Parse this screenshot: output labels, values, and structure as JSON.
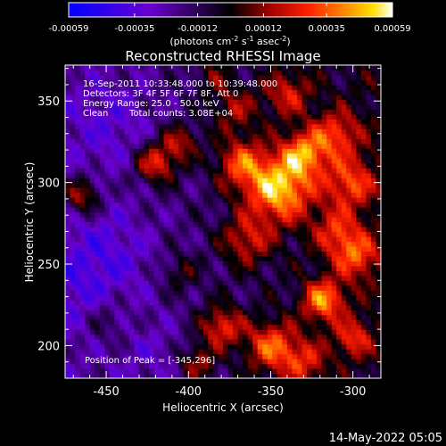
{
  "chart_data": {
    "type": "heatmap",
    "title": "Reconstructed RHESSI Image",
    "xlabel": "Heliocentric X (arcsec)",
    "ylabel": "Heliocentric Y (arcsec)",
    "xlim": [
      -475,
      -283
    ],
    "ylim": [
      180,
      372
    ],
    "x_ticks": [
      -450,
      -400,
      -350,
      -300
    ],
    "y_ticks": [
      200,
      250,
      300,
      350
    ],
    "colorbar": {
      "ticks": [
        "-0.00059",
        "-0.00035",
        "-0.00012",
        "0.00012",
        "0.00035",
        "0.00059"
      ],
      "tick_values": [
        -0.00059,
        -0.00035,
        -0.00012,
        0.00012,
        0.00035,
        0.00059
      ],
      "range": [
        -0.00059,
        0.00059
      ],
      "unit_prefix": "(photons cm",
      "unit_exp1": "-2",
      "unit_mid": " s",
      "unit_exp2": "-1",
      "unit_mid2": " asec",
      "unit_exp3": "-2",
      "unit_suffix": ")"
    },
    "annotations": {
      "time": "16-Sep-2011 10:33:48.000 to 10:39:48.000",
      "detectors": "Detectors: 3F 4F 5F 6F 7F 8F, Att 0",
      "energy": "Energy Range: 25.0 - 50.0 keV",
      "clean": "Clean",
      "counts": "Total counts: 3.08E+04",
      "peak": "Position of Peak = [-345,296]"
    },
    "peak": [
      -345,
      296
    ],
    "sources": [
      {
        "x": -345,
        "y": 296,
        "intensity": 0.00059,
        "sigma": 14
      },
      {
        "x": -330,
        "y": 318,
        "intensity": 0.00045,
        "sigma": 10
      },
      {
        "x": -368,
        "y": 312,
        "intensity": 0.0004,
        "sigma": 11
      },
      {
        "x": -420,
        "y": 312,
        "intensity": 0.00042,
        "sigma": 9
      },
      {
        "x": -405,
        "y": 325,
        "intensity": 0.0003,
        "sigma": 8
      },
      {
        "x": -465,
        "y": 292,
        "intensity": 0.00038,
        "sigma": 8
      },
      {
        "x": -302,
        "y": 300,
        "intensity": 0.00036,
        "sigma": 11
      },
      {
        "x": -310,
        "y": 330,
        "intensity": 0.00034,
        "sigma": 10
      },
      {
        "x": -298,
        "y": 255,
        "intensity": 0.00035,
        "sigma": 10
      },
      {
        "x": -310,
        "y": 270,
        "intensity": 0.0003,
        "sigma": 10
      },
      {
        "x": -318,
        "y": 228,
        "intensity": 0.00048,
        "sigma": 9
      },
      {
        "x": -350,
        "y": 200,
        "intensity": 0.00042,
        "sigma": 11
      },
      {
        "x": -380,
        "y": 212,
        "intensity": 0.0004,
        "sigma": 9
      },
      {
        "x": -395,
        "y": 190,
        "intensity": 0.0003,
        "sigma": 8
      },
      {
        "x": -330,
        "y": 190,
        "intensity": 0.0003,
        "sigma": 10
      },
      {
        "x": -365,
        "y": 265,
        "intensity": 0.00032,
        "sigma": 11
      },
      {
        "x": -340,
        "y": 355,
        "intensity": 0.0003,
        "sigma": 10
      },
      {
        "x": -372,
        "y": 345,
        "intensity": 0.00025,
        "sigma": 10
      },
      {
        "x": -300,
        "y": 205,
        "intensity": 0.00032,
        "sigma": 8
      },
      {
        "x": -405,
        "y": 245,
        "intensity": 0.00018,
        "sigma": 8
      },
      {
        "x": -385,
        "y": 365,
        "intensity": 0.00018,
        "sigma": 8
      },
      {
        "x": -450,
        "y": 215,
        "intensity": 0.00012,
        "sigma": 10
      },
      {
        "x": -445,
        "y": 335,
        "intensity": -0.00012,
        "sigma": 18
      },
      {
        "x": -450,
        "y": 255,
        "intensity": -0.00016,
        "sigma": 20
      },
      {
        "x": -420,
        "y": 195,
        "intensity": -0.0001,
        "sigma": 16
      },
      {
        "x": -470,
        "y": 230,
        "intensity": -8e-05,
        "sigma": 14
      }
    ]
  },
  "footer": {
    "date": "14-May-2022 05:05"
  }
}
